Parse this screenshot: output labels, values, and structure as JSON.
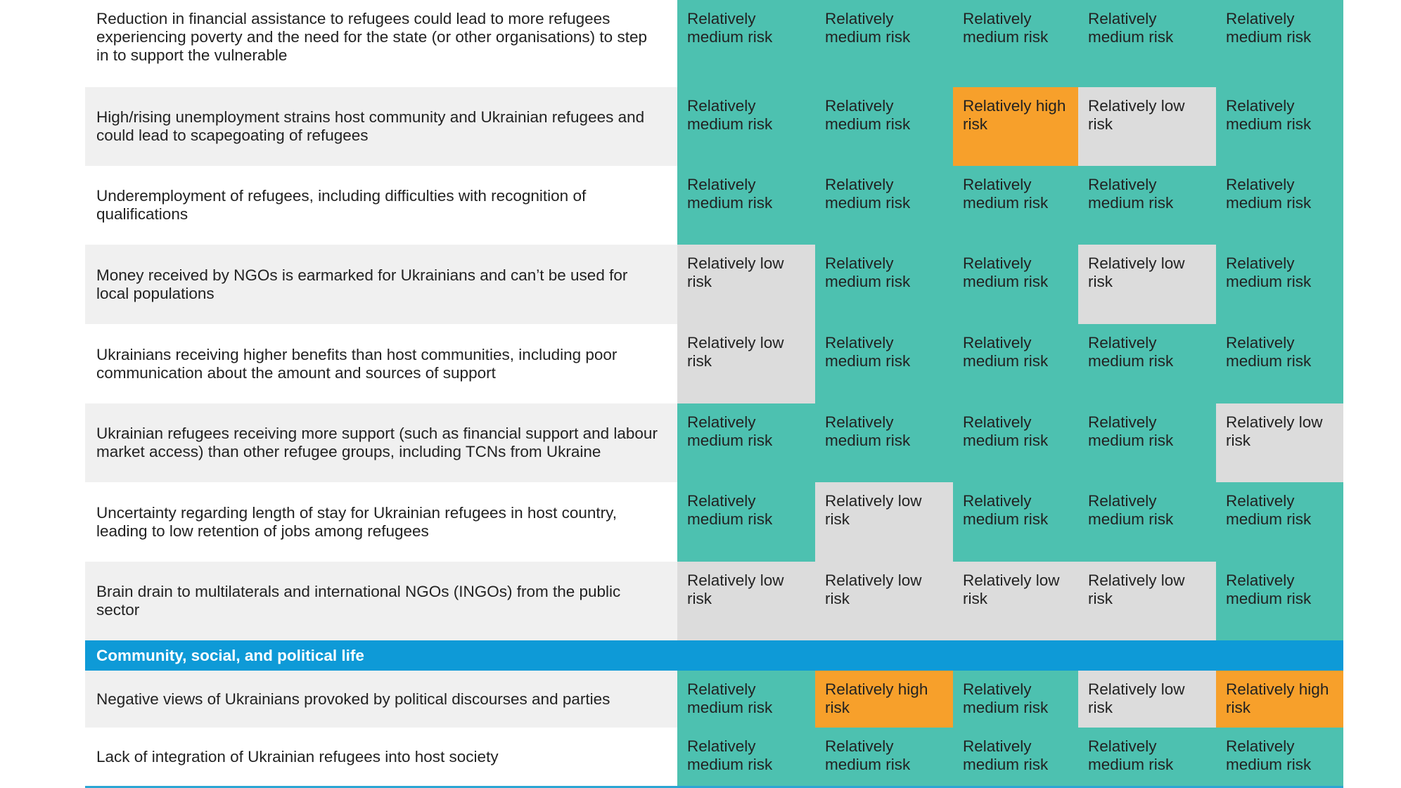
{
  "rows": [
    {
      "text": "Reduction in financial assistance to refugees could lead to more refugees experiencing poverty and the need for the state (or other organisations) to step in to support the vulnerable",
      "risks": [
        "Relatively medium risk",
        "Relatively medium risk",
        "Relatively medium risk",
        "Relatively medium risk",
        "Relatively medium risk"
      ]
    },
    {
      "text": "High/rising unemployment strains host community and Ukrainian refugees and could lead to scapegoating of refugees",
      "risks": [
        "Relatively medium risk",
        "Relatively medium risk",
        "Relatively high risk",
        "Relatively low risk",
        "Relatively medium risk"
      ]
    },
    {
      "text": "Underemployment of refugees, including difficulties with recognition of qualifications",
      "risks": [
        "Relatively medium risk",
        "Relatively medium risk",
        "Relatively medium risk",
        "Relatively medium risk",
        "Relatively medium risk"
      ]
    },
    {
      "text": "Money received by NGOs is earmarked for Ukrainians and can’t be used for local populations",
      "risks": [
        "Relatively low risk",
        "Relatively medium risk",
        "Relatively medium risk",
        "Relatively low risk",
        "Relatively medium risk"
      ]
    },
    {
      "text": "Ukrainians receiving higher benefits than host communities, including poor communication about the amount and sources of support",
      "risks": [
        "Relatively low risk",
        "Relatively medium risk",
        "Relatively medium risk",
        "Relatively medium risk",
        "Relatively medium risk"
      ]
    },
    {
      "text": "Ukrainian refugees receiving more support (such as financial support and labour market access) than other refugee groups, including TCNs from Ukraine",
      "risks": [
        "Relatively medium risk",
        "Relatively medium risk",
        "Relatively medium risk",
        "Relatively medium risk",
        "Relatively low risk"
      ]
    },
    {
      "text": "Uncertainty regarding length of stay for Ukrainian refugees in host country, leading to low retention of jobs among refugees",
      "risks": [
        "Relatively medium risk",
        "Relatively low risk",
        "Relatively medium risk",
        "Relatively medium risk",
        "Relatively medium risk"
      ]
    },
    {
      "text": "Brain drain to multilaterals and international NGOs (INGOs) from the public sector",
      "risks": [
        "Relatively low risk",
        "Relatively low risk",
        "Relatively low risk",
        "Relatively low risk",
        "Relatively medium risk"
      ]
    }
  ],
  "section": {
    "title": "Community, social, and political life",
    "rows": [
      {
        "text": "Negative views of Ukrainians provoked by political discourses and parties",
        "risks": [
          "Relatively medium risk",
          "Relatively high risk",
          "Relatively medium risk",
          "Relatively low risk",
          "Relatively high risk"
        ]
      },
      {
        "text": "Lack of integration of Ukrainian refugees into host society",
        "risks": [
          "Relatively medium risk",
          "Relatively medium risk",
          "Relatively medium risk",
          "Relatively medium risk",
          "Relatively medium risk"
        ]
      }
    ]
  },
  "colors": {
    "medium": "#4dc1b0",
    "high": "#f7a02b",
    "low": "#dcdcdc",
    "section": "#0e9ad7"
  }
}
